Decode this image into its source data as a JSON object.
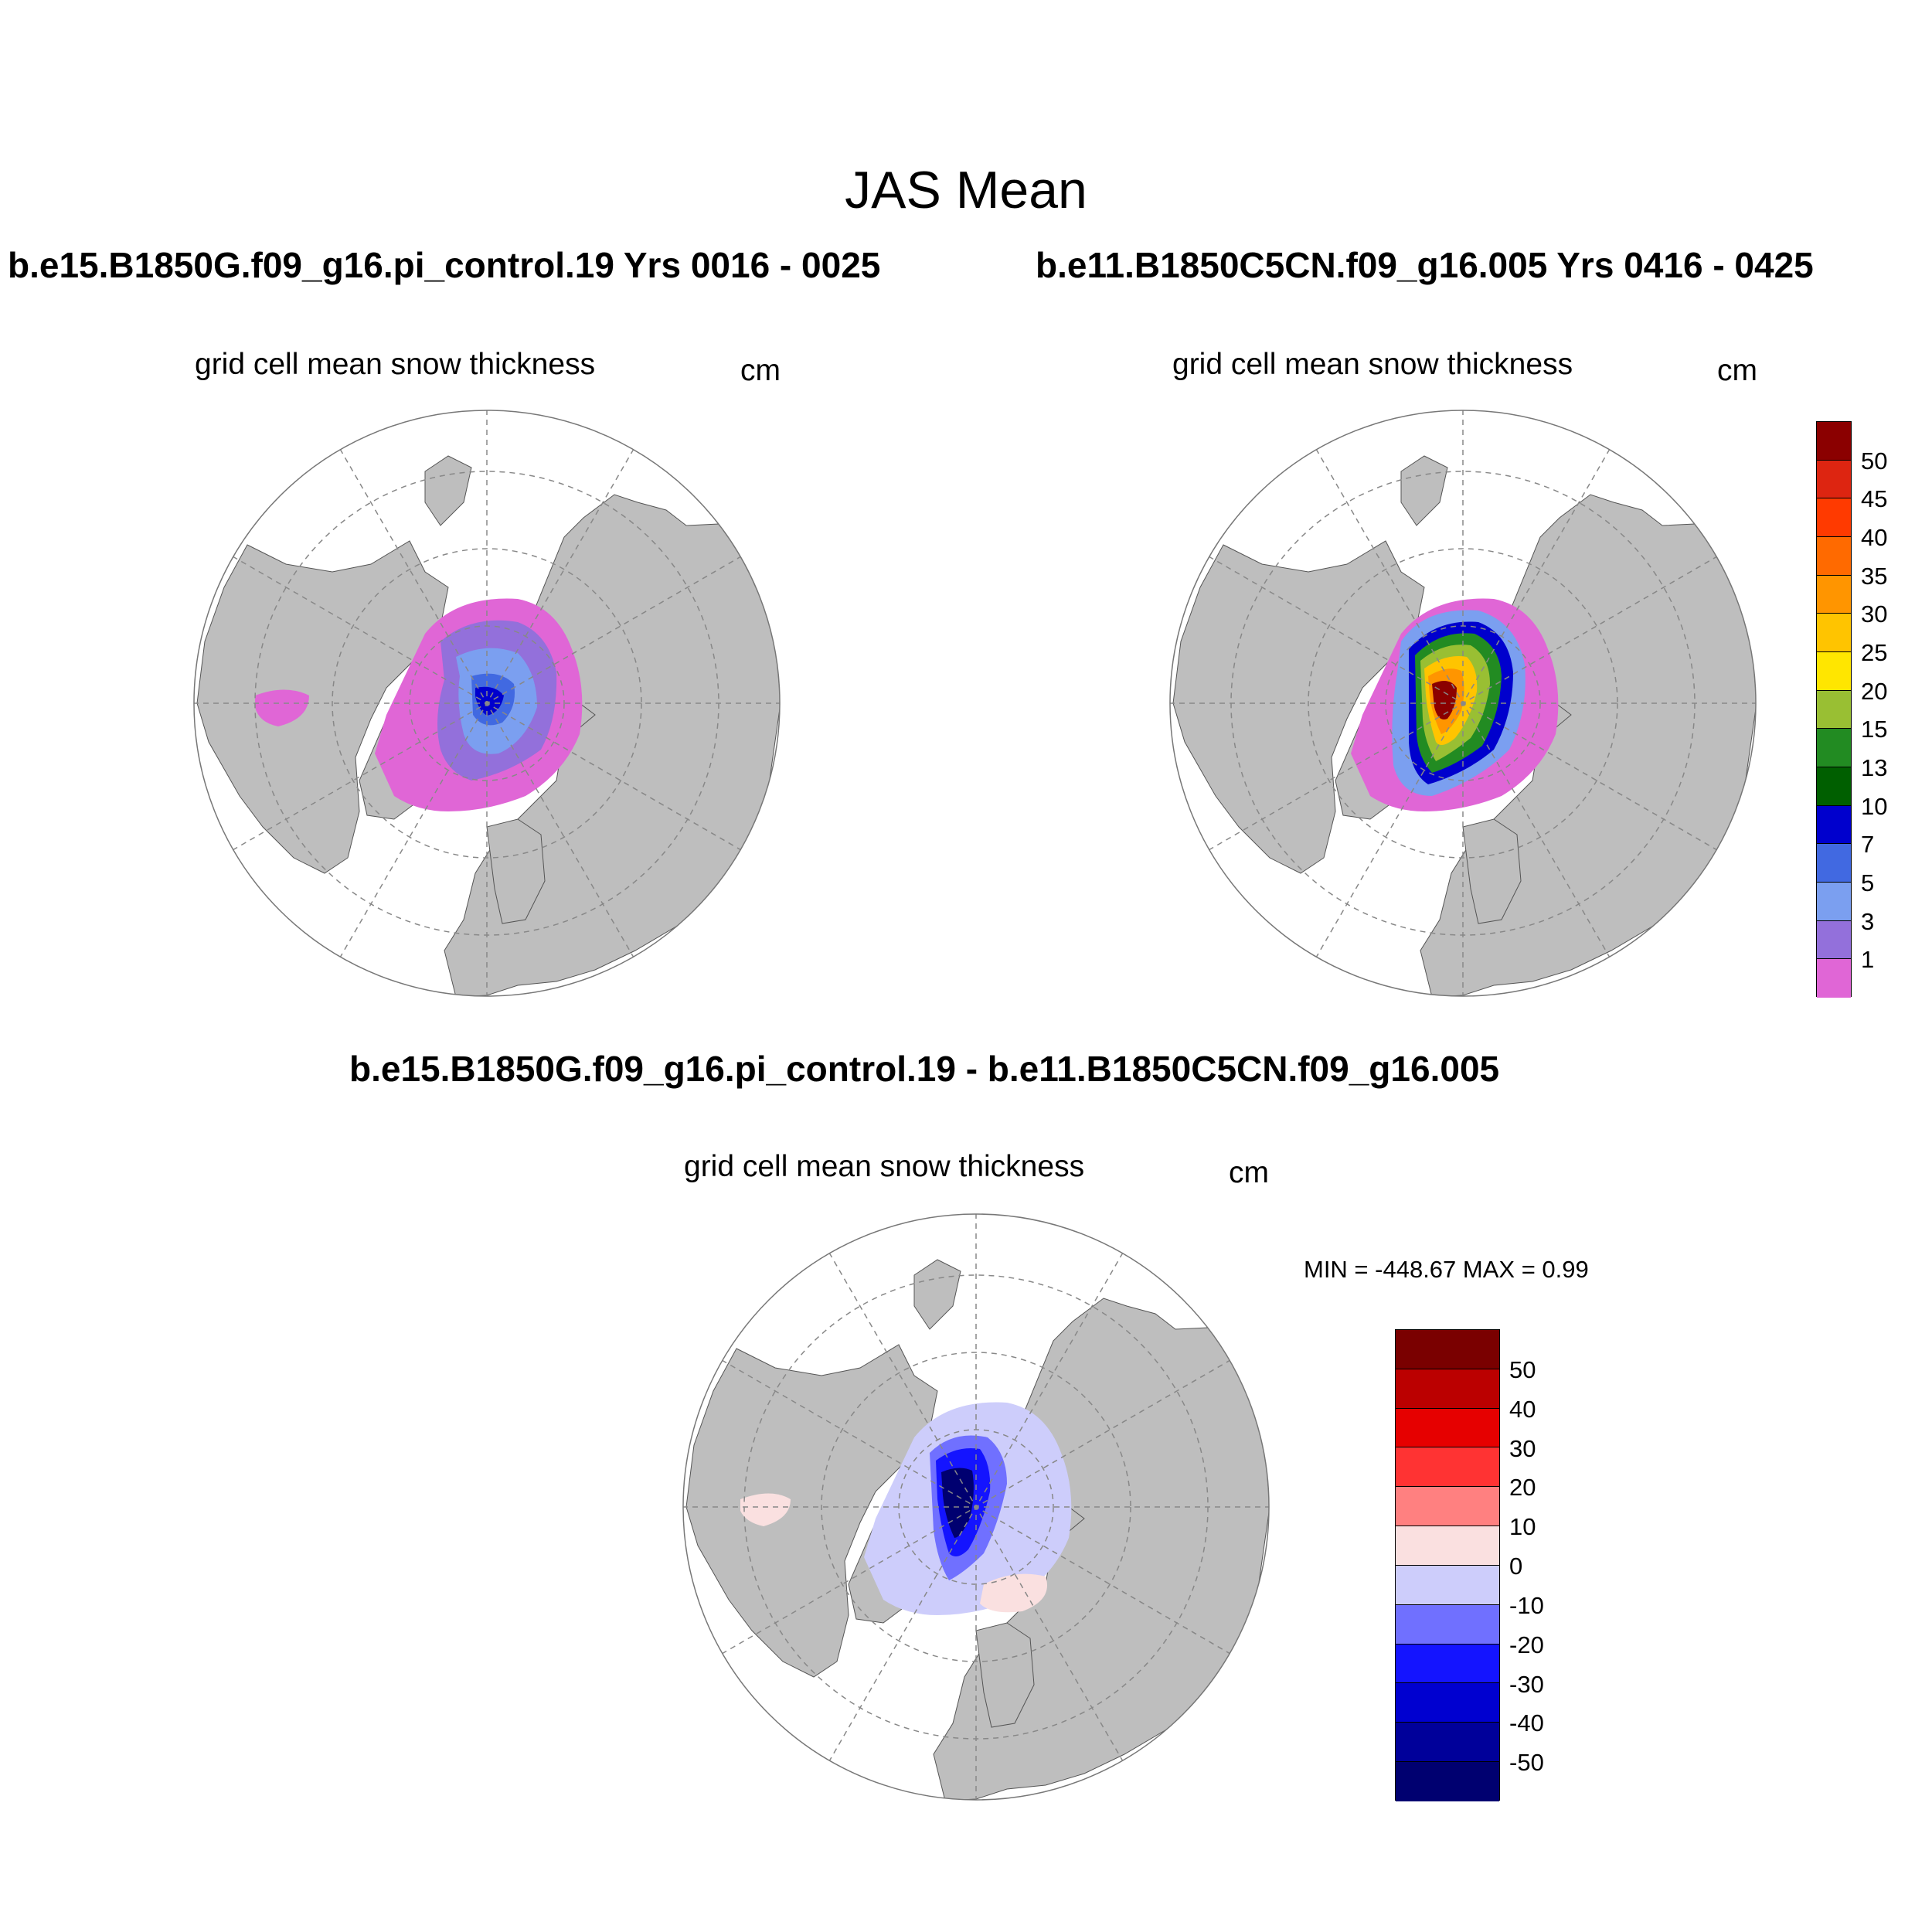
{
  "title": "JAS Mean",
  "panels": {
    "left": {
      "run": "b.e15.B1850G.f09_g16.pi_control.19  Yrs 0016 - 0025",
      "variable": "grid cell mean snow thickness",
      "units": "cm"
    },
    "right": {
      "run": "b.e11.B1850C5CN.f09_g16.005  Yrs 0416 - 0425",
      "variable": "grid cell mean snow thickness",
      "units": "cm"
    },
    "diff": {
      "run": "b.e15.B1850G.f09_g16.pi_control.19 - b.e11.B1850C5CN.f09_g16.005",
      "variable": "grid cell mean snow thickness",
      "units": "cm",
      "minmax": "MIN = -448.67 MAX =   0.99"
    }
  },
  "colorbar_top": {
    "labels": [
      "50",
      "45",
      "40",
      "35",
      "30",
      "25",
      "20",
      "15",
      "13",
      "10",
      "7",
      "5",
      "3",
      "1"
    ],
    "colors": [
      "#8b0000",
      "#dd2511",
      "#ff3a00",
      "#ff6a00",
      "#ff9500",
      "#ffc400",
      "#ffe600",
      "#99bf33",
      "#228b22",
      "#005f00",
      "#0000cd",
      "#4169e1",
      "#7b9ff0",
      "#9370db",
      "#e066d6"
    ]
  },
  "colorbar_diff": {
    "labels": [
      "50",
      "40",
      "30",
      "20",
      "10",
      "0",
      "-10",
      "-20",
      "-30",
      "-40",
      "-50"
    ],
    "colors": [
      "#7a0000",
      "#bb0000",
      "#e60000",
      "#ff3333",
      "#ff8080",
      "#fae0e0",
      "#cdcdfb",
      "#7070ff",
      "#1414ff",
      "#0000d0",
      "#00009a",
      "#000070"
    ]
  }
}
